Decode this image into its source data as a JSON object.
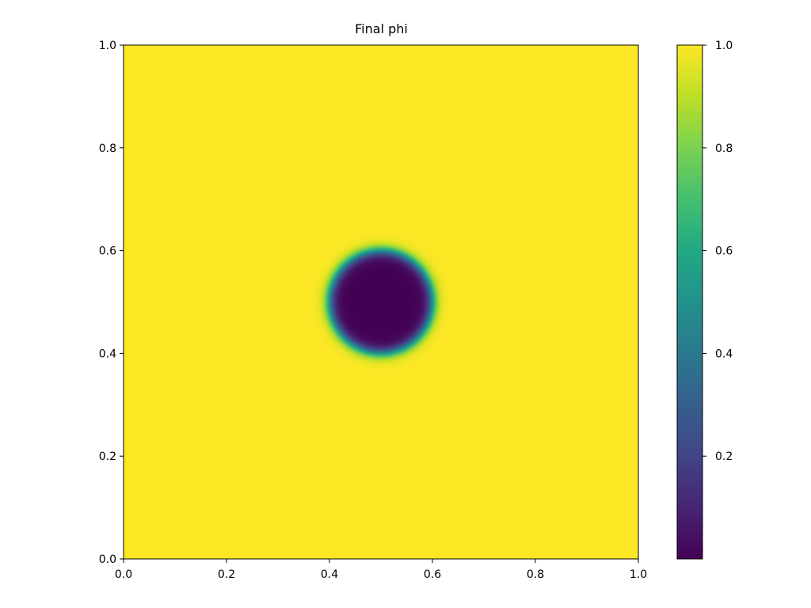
{
  "chart_data": {
    "type": "heatmap",
    "title": "Final phi",
    "xlabel": "",
    "ylabel": "",
    "xlim": [
      0.0,
      1.0
    ],
    "ylim": [
      0.0,
      1.0
    ],
    "x_ticks": [
      "0.0",
      "0.2",
      "0.4",
      "0.6",
      "0.8",
      "1.0"
    ],
    "x_tick_values": [
      0.0,
      0.2,
      0.4,
      0.6,
      0.8,
      1.0
    ],
    "y_ticks": [
      "0.0",
      "0.2",
      "0.4",
      "0.6",
      "0.8",
      "1.0"
    ],
    "y_tick_values": [
      0.0,
      0.2,
      0.4,
      0.6,
      0.8,
      1.0
    ],
    "colormap": "viridis",
    "grid": false,
    "field": {
      "shape": "circle",
      "center": [
        0.5,
        0.5
      ],
      "radius": 0.1,
      "interface_width": 0.02,
      "inside_value": 0.0,
      "outside_value": 1.0
    },
    "colorbar": {
      "range": [
        0.0,
        1.0
      ],
      "tick_labels": [
        "0.2",
        "0.4",
        "0.6",
        "0.8",
        "1.0"
      ],
      "tick_values": [
        0.2,
        0.4,
        0.6,
        0.8,
        1.0
      ],
      "placement": "right"
    }
  }
}
